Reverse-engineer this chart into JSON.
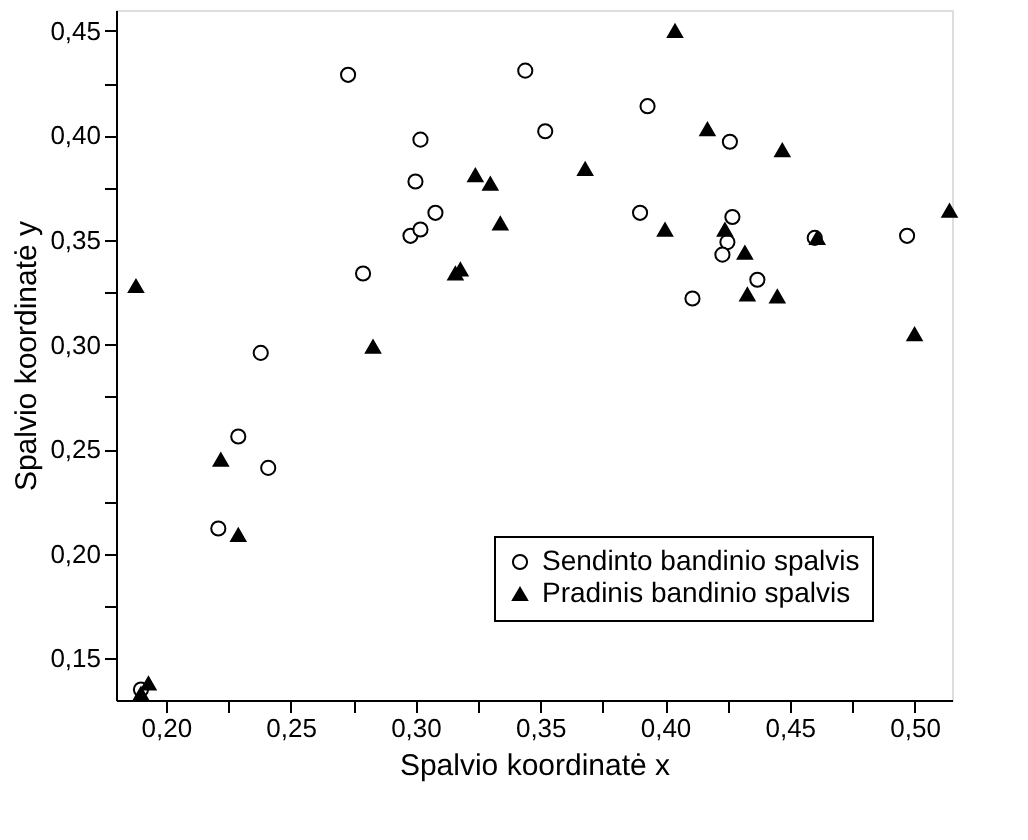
{
  "chart_data": {
    "type": "scatter",
    "xlabel": "Spalvio koordinatė x",
    "ylabel": "Spalvio koordinatė y",
    "xlim": [
      0.18,
      0.515
    ],
    "ylim": [
      0.13,
      0.46
    ],
    "xticks": [
      {
        "value": 0.2,
        "label": "0,20"
      },
      {
        "value": 0.225,
        "label": null
      },
      {
        "value": 0.25,
        "label": "0,25"
      },
      {
        "value": 0.275,
        "label": null
      },
      {
        "value": 0.3,
        "label": "0,30"
      },
      {
        "value": 0.325,
        "label": null
      },
      {
        "value": 0.35,
        "label": "0,35"
      },
      {
        "value": 0.375,
        "label": null
      },
      {
        "value": 0.4,
        "label": "0,40"
      },
      {
        "value": 0.425,
        "label": null
      },
      {
        "value": 0.45,
        "label": "0,45"
      },
      {
        "value": 0.475,
        "label": null
      },
      {
        "value": 0.5,
        "label": "0,50"
      }
    ],
    "yticks": [
      {
        "value": 0.15,
        "label": "0,15"
      },
      {
        "value": 0.175,
        "label": null
      },
      {
        "value": 0.2,
        "label": "0,20"
      },
      {
        "value": 0.225,
        "label": null
      },
      {
        "value": 0.25,
        "label": "0,25"
      },
      {
        "value": 0.275,
        "label": null
      },
      {
        "value": 0.3,
        "label": "0,30"
      },
      {
        "value": 0.325,
        "label": null
      },
      {
        "value": 0.35,
        "label": "0,35"
      },
      {
        "value": 0.375,
        "label": null
      },
      {
        "value": 0.4,
        "label": "0,40"
      },
      {
        "value": 0.425,
        "label": null
      },
      {
        "value": 0.45,
        "label": "0,45"
      }
    ],
    "grid": false,
    "legend": "bottom right",
    "series": [
      {
        "name": "Sendinto bandinio spalvis",
        "color": "#000000",
        "marker": "circle",
        "x": [
          0.273,
          0.344,
          0.352,
          0.302,
          0.3,
          0.298,
          0.302,
          0.308,
          0.279,
          0.238,
          0.229,
          0.241,
          0.221,
          0.393,
          0.426,
          0.39,
          0.427,
          0.425,
          0.423,
          0.437,
          0.411,
          0.46,
          0.497,
          0.19
        ],
        "values": [
          0.429,
          0.431,
          0.402,
          0.398,
          0.378,
          0.352,
          0.355,
          0.363,
          0.334,
          0.296,
          0.256,
          0.241,
          0.212,
          0.414,
          0.397,
          0.363,
          0.361,
          0.349,
          0.343,
          0.331,
          0.322,
          0.351,
          0.352,
          0.135
        ]
      },
      {
        "name": "Pradinis bandinio spalvis",
        "color": "#000000",
        "marker": "triangle",
        "x": [
          0.188,
          0.222,
          0.229,
          0.283,
          0.324,
          0.33,
          0.334,
          0.316,
          0.318,
          0.368,
          0.404,
          0.417,
          0.447,
          0.4,
          0.424,
          0.432,
          0.433,
          0.445,
          0.461,
          0.5,
          0.514,
          0.19,
          0.193
        ],
        "values": [
          0.328,
          0.245,
          0.209,
          0.299,
          0.381,
          0.377,
          0.358,
          0.334,
          0.336,
          0.384,
          0.45,
          0.403,
          0.393,
          0.355,
          0.355,
          0.344,
          0.324,
          0.323,
          0.351,
          0.305,
          0.364,
          0.133,
          0.138
        ]
      }
    ]
  }
}
